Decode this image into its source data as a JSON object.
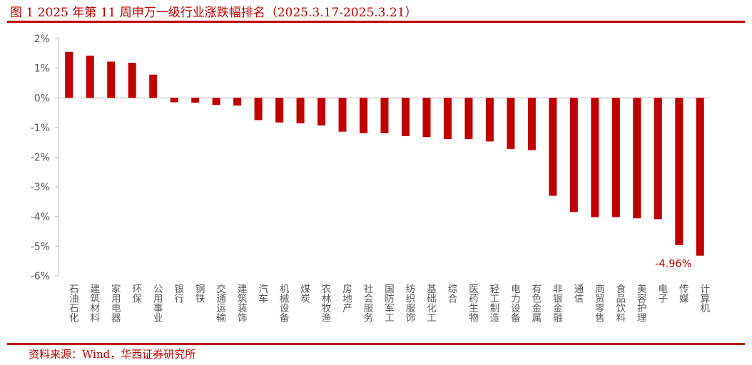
{
  "title": "图 1 2025 年第 11 周申万一级行业涨跌幅排名（2025.3.17-2025.3.21）",
  "source": "资料来源：Wind，华西证券研究所",
  "colors": {
    "accent": "#c00000",
    "bar": "#c00000",
    "axis": "#bfbfbf",
    "text": "#595959"
  },
  "chart_data": {
    "type": "bar",
    "title": "",
    "xlabel": "",
    "ylabel": "",
    "ylim": [
      -6,
      2
    ],
    "yticks": [
      2,
      1,
      0,
      -1,
      -2,
      -3,
      -4,
      -5,
      -6
    ],
    "ytick_labels": [
      "2%",
      "1%",
      "0%",
      "-1%",
      "-2%",
      "-3%",
      "-4%",
      "-5%",
      "-6%"
    ],
    "grid": false,
    "legend": "none",
    "categories": [
      "石油石化",
      "建筑材料",
      "家用电器",
      "环保",
      "公用事业",
      "银行",
      "钢铁",
      "交通运输",
      "建筑装饰",
      "汽车",
      "机械设备",
      "煤炭",
      "农林牧渔",
      "房地产",
      "社会服务",
      "国防军工",
      "纺织服饰",
      "基础化工",
      "综合",
      "医药生物",
      "轻工制造",
      "电力设备",
      "有色金属",
      "非银金融",
      "通信",
      "商贸零售",
      "食品饮料",
      "美容护理",
      "电子",
      "传媒",
      "计算机"
    ],
    "values": [
      1.55,
      1.42,
      1.22,
      1.18,
      0.78,
      -0.15,
      -0.16,
      -0.24,
      -0.26,
      -0.75,
      -0.83,
      -0.86,
      -0.93,
      -1.14,
      -1.19,
      -1.19,
      -1.29,
      -1.32,
      -1.39,
      -1.39,
      -1.47,
      -1.72,
      -1.76,
      -3.3,
      -3.85,
      -4.02,
      -4.02,
      -4.06,
      -4.09,
      -4.96,
      -5.32
    ],
    "annotations": [
      {
        "category": "传媒",
        "text": "-4.96%"
      }
    ]
  }
}
